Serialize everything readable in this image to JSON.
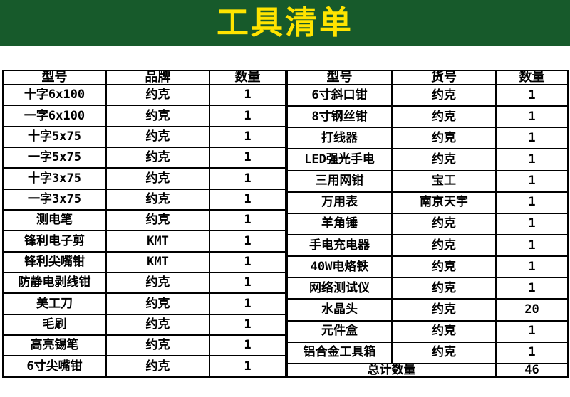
{
  "banner": {
    "title": "工具清单",
    "bg_color": "#175a2b",
    "text_color": "#ffe400"
  },
  "left_table": {
    "headers": [
      "型号",
      "品牌",
      "数量"
    ],
    "rows": [
      {
        "model": "十字6x100",
        "brand": "约克",
        "qty": "1"
      },
      {
        "model": "一字6x100",
        "brand": "约克",
        "qty": "1"
      },
      {
        "model": "十字5x75",
        "brand": "约克",
        "qty": "1"
      },
      {
        "model": "一字5x75",
        "brand": "约克",
        "qty": "1"
      },
      {
        "model": "十字3x75",
        "brand": "约克",
        "qty": "1"
      },
      {
        "model": "一字3x75",
        "brand": "约克",
        "qty": "1"
      },
      {
        "model": "测电笔",
        "brand": "约克",
        "qty": "1"
      },
      {
        "model": "锋利电子剪",
        "brand": "KMT",
        "qty": "1"
      },
      {
        "model": "锋利尖嘴钳",
        "brand": "KMT",
        "qty": "1"
      },
      {
        "model": "防静电剥线钳",
        "brand": "约克",
        "qty": "1"
      },
      {
        "model": "美工刀",
        "brand": "约克",
        "qty": "1"
      },
      {
        "model": "毛刷",
        "brand": "约克",
        "qty": "1"
      },
      {
        "model": "高亮锡笔",
        "brand": "约克",
        "qty": "1"
      },
      {
        "model": "6寸尖嘴钳",
        "brand": "约克",
        "qty": "1"
      }
    ]
  },
  "right_table": {
    "headers": [
      "型号",
      "货号",
      "数量"
    ],
    "rows": [
      {
        "model": "6寸斜口钳",
        "brand": "约克",
        "qty": "1"
      },
      {
        "model": "8寸钢丝钳",
        "brand": "约克",
        "qty": "1"
      },
      {
        "model": "打线器",
        "brand": "约克",
        "qty": "1"
      },
      {
        "model": "LED强光手电",
        "brand": "约克",
        "qty": "1"
      },
      {
        "model": "三用网钳",
        "brand": "宝工",
        "qty": "1"
      },
      {
        "model": "万用表",
        "brand": "南京天宇",
        "qty": "1"
      },
      {
        "model": "羊角锤",
        "brand": "约克",
        "qty": "1"
      },
      {
        "model": "手电充电器",
        "brand": "约克",
        "qty": "1"
      },
      {
        "model": "40W电烙铁",
        "brand": "约克",
        "qty": "1"
      },
      {
        "model": "网络测试仪",
        "brand": "约克",
        "qty": "1"
      },
      {
        "model": "水晶头",
        "brand": "约克",
        "qty": "20",
        "qty_align": "right"
      },
      {
        "model": "元件盒",
        "brand": "约克",
        "qty": "1",
        "qty_align": "right"
      },
      {
        "model": "铝合金工具箱",
        "brand": "约克",
        "qty": "1",
        "qty_align": "right"
      }
    ],
    "total_label": "总计数量",
    "total_value": "46"
  }
}
